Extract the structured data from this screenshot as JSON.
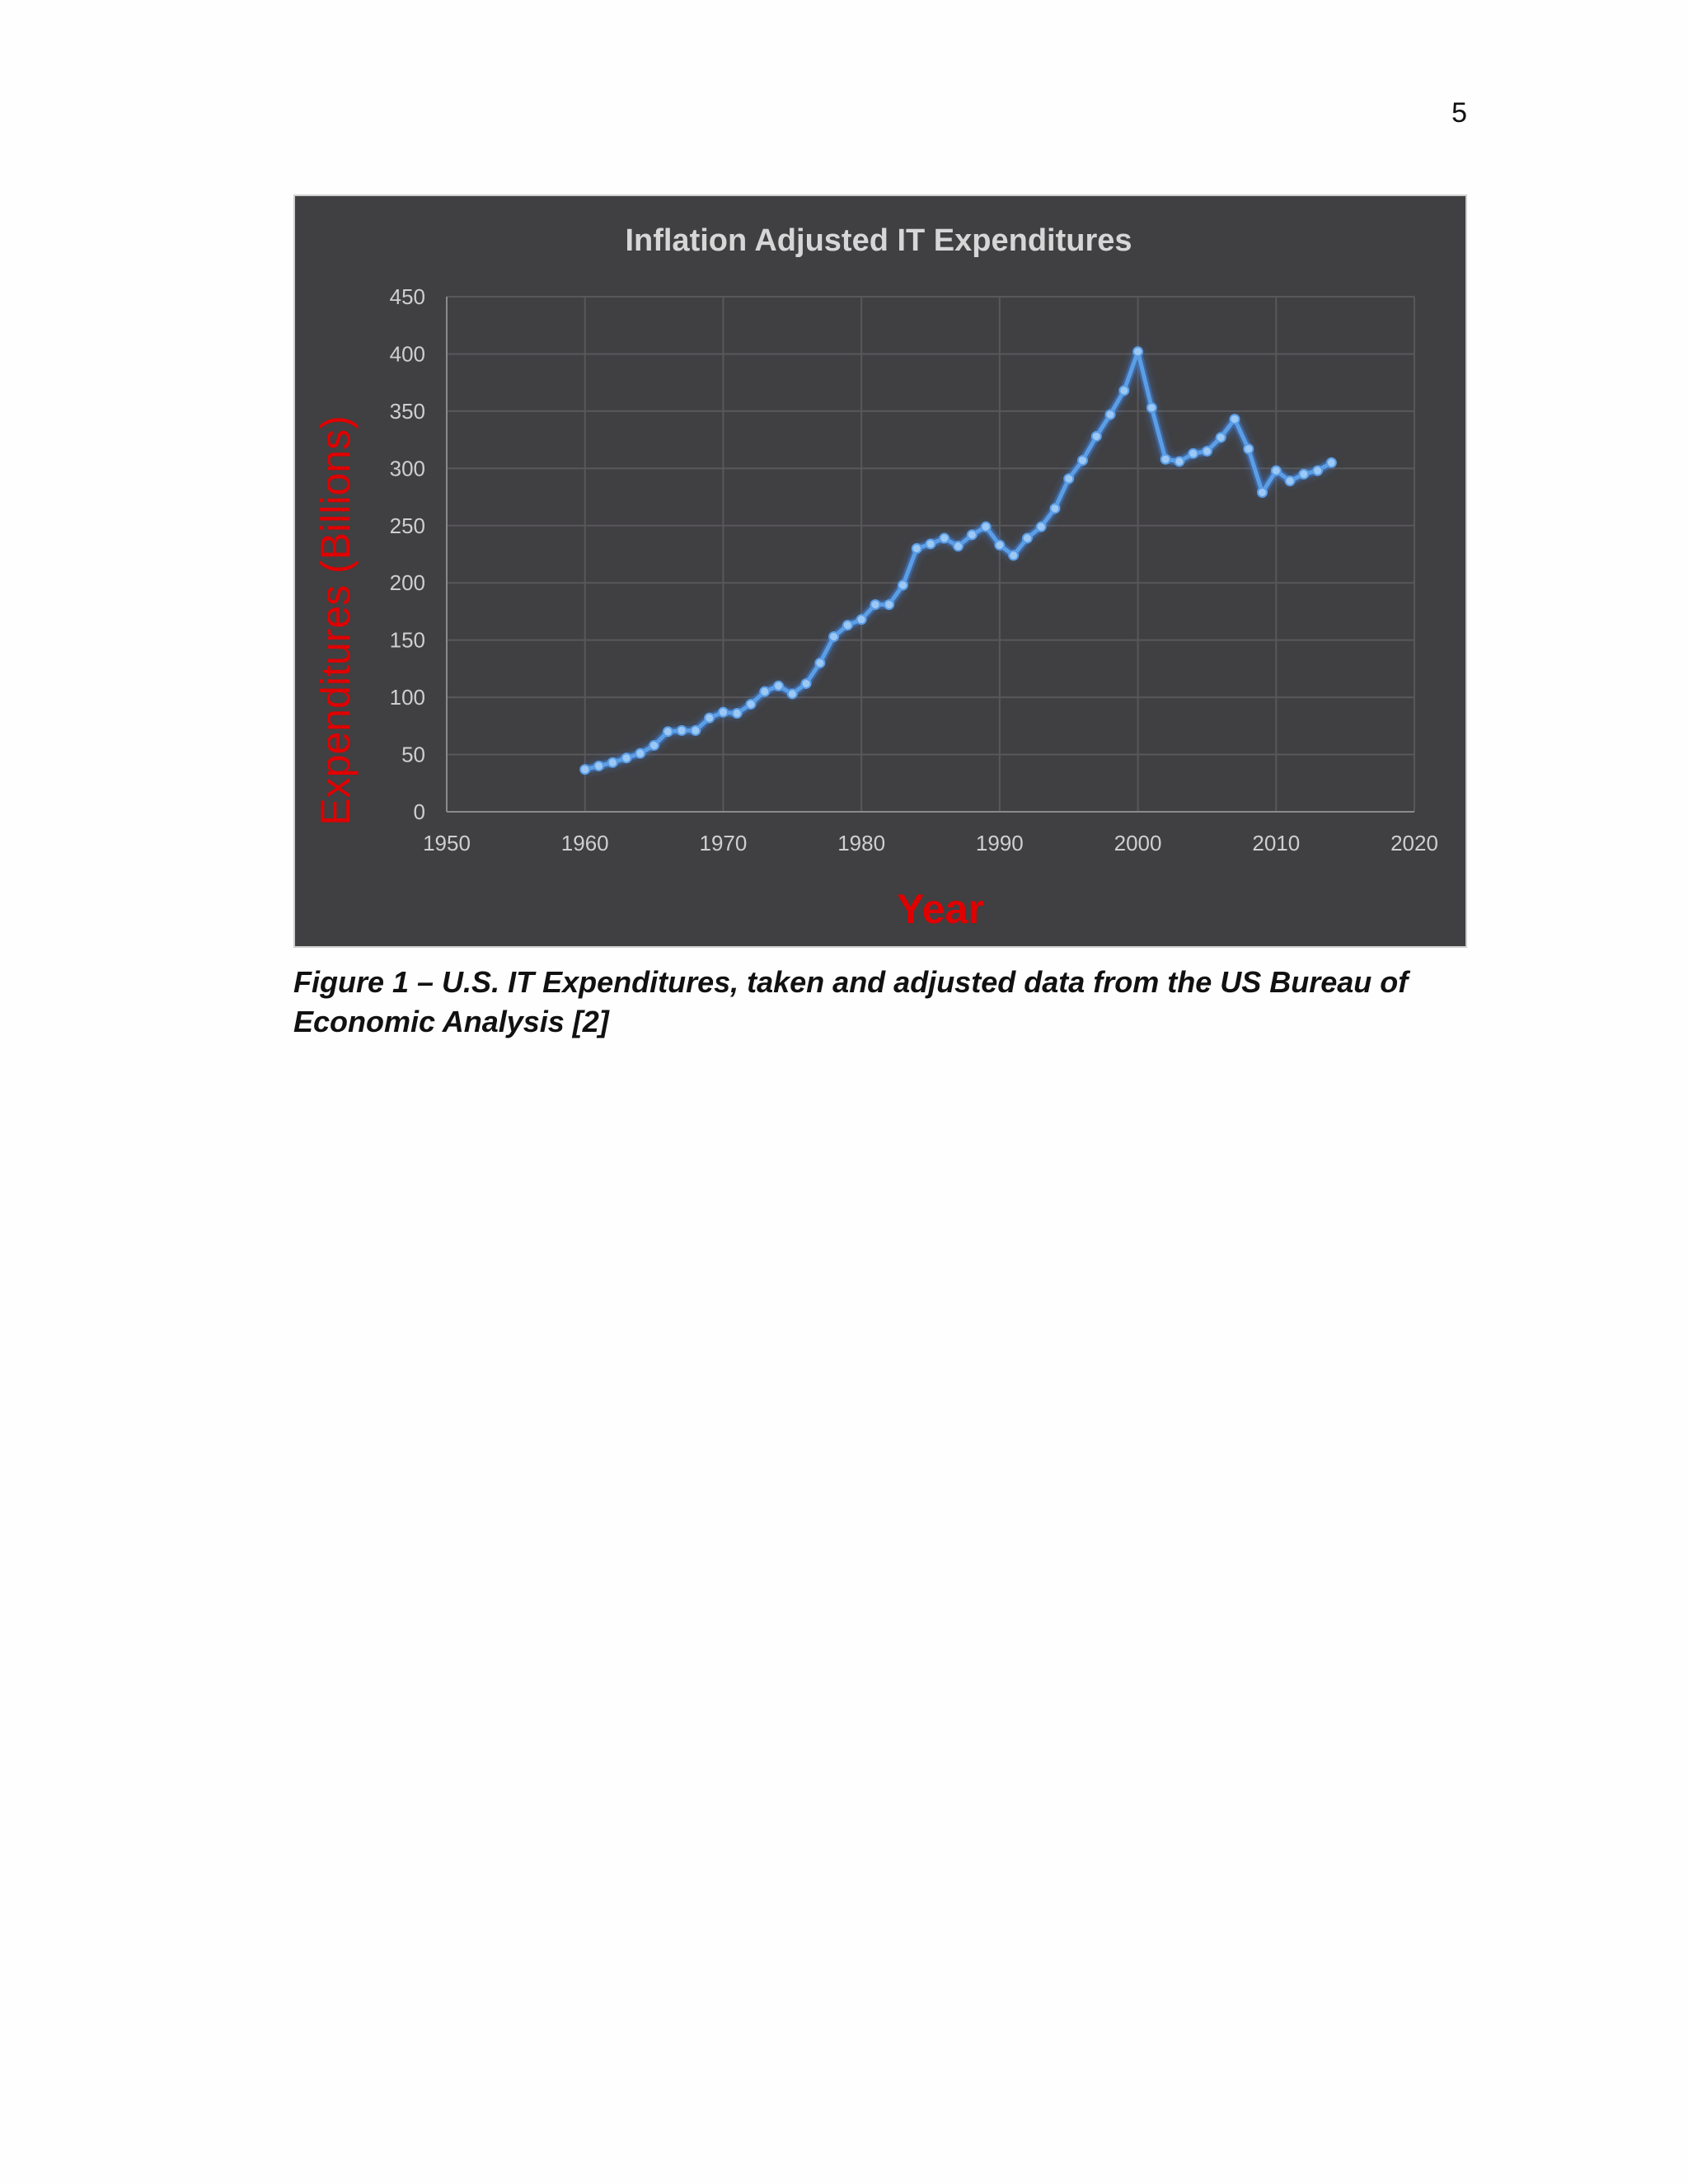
{
  "page": {
    "number": "5"
  },
  "caption": "Figure 1 – U.S. IT Expenditures, taken and adjusted data from the US Bureau of Economic Analysis  [2]",
  "colors": {
    "background": "#403f41",
    "series": "#5b9ee6",
    "glow": "#3d7fd6",
    "axis_label": "#e00000",
    "tick": "#cfcfcf",
    "grid": "#58575a"
  },
  "chart_data": {
    "type": "line",
    "title": "Inflation Adjusted IT Expenditures",
    "xlabel": "Year",
    "ylabel": "Expenditures (Billions)",
    "xlim": [
      1950,
      2020
    ],
    "ylim": [
      0,
      450
    ],
    "xticks": [
      1950,
      1960,
      1970,
      1980,
      1990,
      2000,
      2010,
      2020
    ],
    "yticks": [
      0,
      50,
      100,
      150,
      200,
      250,
      300,
      350,
      400,
      450
    ],
    "grid": true,
    "legend": "none",
    "x": [
      1960,
      1961,
      1962,
      1963,
      1964,
      1965,
      1966,
      1967,
      1968,
      1969,
      1970,
      1971,
      1972,
      1973,
      1974,
      1975,
      1976,
      1977,
      1978,
      1979,
      1980,
      1981,
      1982,
      1983,
      1984,
      1985,
      1986,
      1987,
      1988,
      1989,
      1990,
      1991,
      1992,
      1993,
      1994,
      1995,
      1996,
      1997,
      1998,
      1999,
      2000,
      2001,
      2002,
      2003,
      2004,
      2005,
      2006,
      2007,
      2008,
      2009,
      2010,
      2011,
      2012,
      2013,
      2014
    ],
    "y": [
      37,
      40,
      43,
      47,
      51,
      58,
      70,
      71,
      71,
      82,
      87,
      86,
      94,
      105,
      110,
      103,
      112,
      130,
      153,
      163,
      168,
      181,
      181,
      198,
      230,
      234,
      239,
      232,
      242,
      249,
      233,
      224,
      239,
      249,
      265,
      291,
      307,
      328,
      347,
      368,
      402,
      353,
      308,
      306,
      313,
      315,
      327,
      343,
      317,
      279,
      298,
      289,
      295,
      298,
      305
    ]
  }
}
